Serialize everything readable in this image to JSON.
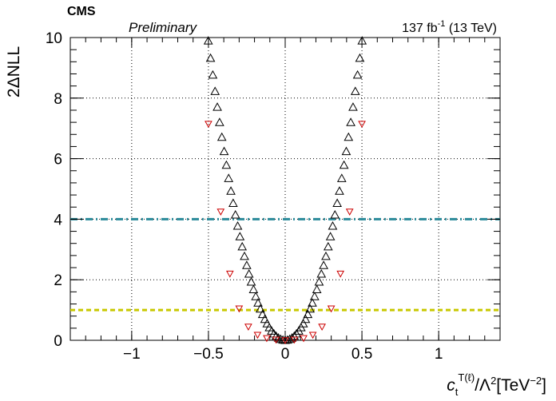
{
  "header": {
    "experiment": "CMS",
    "status": "Preliminary",
    "lumi": "137 fb",
    "lumi_exp": "-1",
    "energy": " (13 TeV)"
  },
  "chart_data": {
    "type": "scatter",
    "title": "",
    "xlabel": "c_t^{T(ℓ)}/Λ²[TeV⁻²]",
    "ylabel": "2ΔNLL",
    "xlim": [
      -1.4,
      1.4
    ],
    "ylim": [
      0,
      10
    ],
    "xticks": [
      "−1",
      "−0.5",
      "0",
      "0.5",
      "1"
    ],
    "xtick_values": [
      -1,
      -0.5,
      0,
      0.5,
      1
    ],
    "yticks": [
      "0",
      "2",
      "4",
      "6",
      "8",
      "10"
    ],
    "ytick_values": [
      0,
      2,
      4,
      6,
      8,
      10
    ],
    "grid": true,
    "series": [
      {
        "marker": "open-triangle-up",
        "color": "#000000",
        "curvature": 39.4,
        "x_range": [
          -0.56,
          0.56
        ],
        "n_points": 77
      },
      {
        "marker": "open-triangle-down",
        "color": "#cc0000",
        "x": [
          -0.5,
          -0.42,
          -0.36,
          -0.3,
          -0.24,
          -0.18,
          -0.12,
          -0.06,
          0,
          0.06,
          0.12,
          0.18,
          0.24,
          0.3,
          0.36,
          0.42,
          0.5
        ],
        "y": [
          7.15,
          4.25,
          2.2,
          1.05,
          0.45,
          0.18,
          0.07,
          0.02,
          0,
          0.02,
          0.07,
          0.18,
          0.45,
          1.05,
          2.2,
          4.25,
          7.15
        ]
      }
    ],
    "reference_lines": [
      {
        "y": 4,
        "color": "#2a8a9a",
        "style": "dash-dot"
      },
      {
        "y": 1,
        "color": "#c8c800",
        "style": "dashed"
      }
    ]
  }
}
